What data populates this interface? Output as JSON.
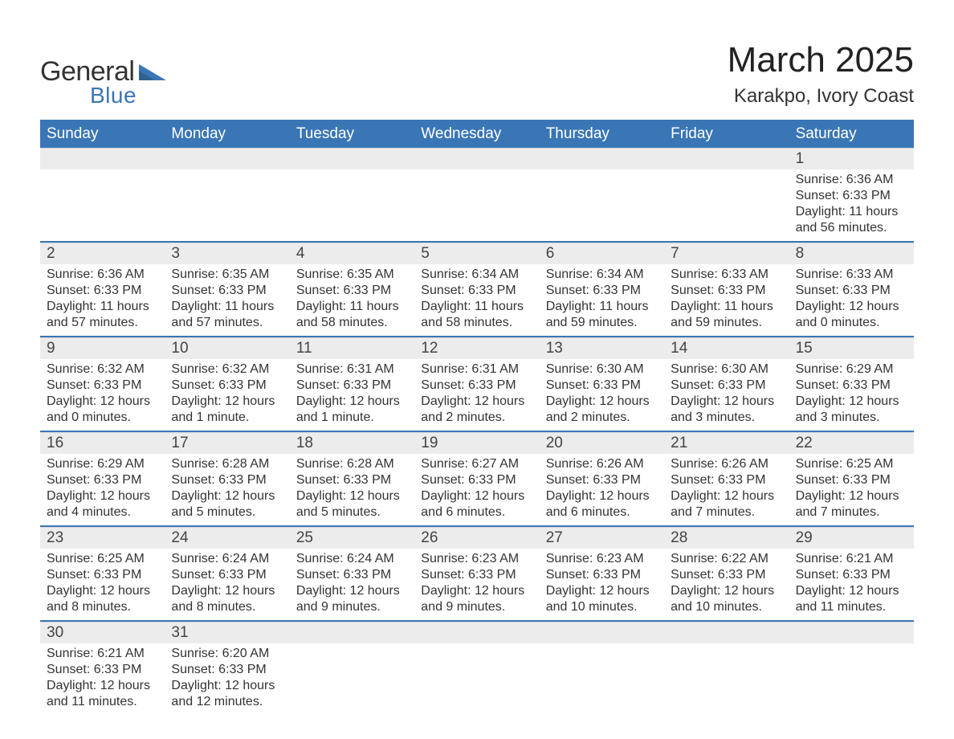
{
  "colors": {
    "header_bg": "#3a76b6",
    "header_text": "#ffffff",
    "band_bg": "#ececec",
    "text": "#333333",
    "page_bg": "#ffffff",
    "logo_blue": "#3a76b6"
  },
  "fonts": {
    "family": "Arial, Helvetica, sans-serif",
    "month_title_size": 44,
    "location_size": 24,
    "day_header_size": 19,
    "daynum_size": 19,
    "content_size": 16
  },
  "logo": {
    "text_general": "General",
    "text_blue": "Blue"
  },
  "title": "March 2025",
  "location": "Karakpo, Ivory Coast",
  "day_headers": [
    "Sunday",
    "Monday",
    "Tuesday",
    "Wednesday",
    "Thursday",
    "Friday",
    "Saturday"
  ],
  "weeks": [
    [
      {
        "n": "",
        "sunrise": "",
        "sunset": "",
        "daylight1": "",
        "daylight2": ""
      },
      {
        "n": "",
        "sunrise": "",
        "sunset": "",
        "daylight1": "",
        "daylight2": ""
      },
      {
        "n": "",
        "sunrise": "",
        "sunset": "",
        "daylight1": "",
        "daylight2": ""
      },
      {
        "n": "",
        "sunrise": "",
        "sunset": "",
        "daylight1": "",
        "daylight2": ""
      },
      {
        "n": "",
        "sunrise": "",
        "sunset": "",
        "daylight1": "",
        "daylight2": ""
      },
      {
        "n": "",
        "sunrise": "",
        "sunset": "",
        "daylight1": "",
        "daylight2": ""
      },
      {
        "n": "1",
        "sunrise": "Sunrise: 6:36 AM",
        "sunset": "Sunset: 6:33 PM",
        "daylight1": "Daylight: 11 hours",
        "daylight2": "and 56 minutes."
      }
    ],
    [
      {
        "n": "2",
        "sunrise": "Sunrise: 6:36 AM",
        "sunset": "Sunset: 6:33 PM",
        "daylight1": "Daylight: 11 hours",
        "daylight2": "and 57 minutes."
      },
      {
        "n": "3",
        "sunrise": "Sunrise: 6:35 AM",
        "sunset": "Sunset: 6:33 PM",
        "daylight1": "Daylight: 11 hours",
        "daylight2": "and 57 minutes."
      },
      {
        "n": "4",
        "sunrise": "Sunrise: 6:35 AM",
        "sunset": "Sunset: 6:33 PM",
        "daylight1": "Daylight: 11 hours",
        "daylight2": "and 58 minutes."
      },
      {
        "n": "5",
        "sunrise": "Sunrise: 6:34 AM",
        "sunset": "Sunset: 6:33 PM",
        "daylight1": "Daylight: 11 hours",
        "daylight2": "and 58 minutes."
      },
      {
        "n": "6",
        "sunrise": "Sunrise: 6:34 AM",
        "sunset": "Sunset: 6:33 PM",
        "daylight1": "Daylight: 11 hours",
        "daylight2": "and 59 minutes."
      },
      {
        "n": "7",
        "sunrise": "Sunrise: 6:33 AM",
        "sunset": "Sunset: 6:33 PM",
        "daylight1": "Daylight: 11 hours",
        "daylight2": "and 59 minutes."
      },
      {
        "n": "8",
        "sunrise": "Sunrise: 6:33 AM",
        "sunset": "Sunset: 6:33 PM",
        "daylight1": "Daylight: 12 hours",
        "daylight2": "and 0 minutes."
      }
    ],
    [
      {
        "n": "9",
        "sunrise": "Sunrise: 6:32 AM",
        "sunset": "Sunset: 6:33 PM",
        "daylight1": "Daylight: 12 hours",
        "daylight2": "and 0 minutes."
      },
      {
        "n": "10",
        "sunrise": "Sunrise: 6:32 AM",
        "sunset": "Sunset: 6:33 PM",
        "daylight1": "Daylight: 12 hours",
        "daylight2": "and 1 minute."
      },
      {
        "n": "11",
        "sunrise": "Sunrise: 6:31 AM",
        "sunset": "Sunset: 6:33 PM",
        "daylight1": "Daylight: 12 hours",
        "daylight2": "and 1 minute."
      },
      {
        "n": "12",
        "sunrise": "Sunrise: 6:31 AM",
        "sunset": "Sunset: 6:33 PM",
        "daylight1": "Daylight: 12 hours",
        "daylight2": "and 2 minutes."
      },
      {
        "n": "13",
        "sunrise": "Sunrise: 6:30 AM",
        "sunset": "Sunset: 6:33 PM",
        "daylight1": "Daylight: 12 hours",
        "daylight2": "and 2 minutes."
      },
      {
        "n": "14",
        "sunrise": "Sunrise: 6:30 AM",
        "sunset": "Sunset: 6:33 PM",
        "daylight1": "Daylight: 12 hours",
        "daylight2": "and 3 minutes."
      },
      {
        "n": "15",
        "sunrise": "Sunrise: 6:29 AM",
        "sunset": "Sunset: 6:33 PM",
        "daylight1": "Daylight: 12 hours",
        "daylight2": "and 3 minutes."
      }
    ],
    [
      {
        "n": "16",
        "sunrise": "Sunrise: 6:29 AM",
        "sunset": "Sunset: 6:33 PM",
        "daylight1": "Daylight: 12 hours",
        "daylight2": "and 4 minutes."
      },
      {
        "n": "17",
        "sunrise": "Sunrise: 6:28 AM",
        "sunset": "Sunset: 6:33 PM",
        "daylight1": "Daylight: 12 hours",
        "daylight2": "and 5 minutes."
      },
      {
        "n": "18",
        "sunrise": "Sunrise: 6:28 AM",
        "sunset": "Sunset: 6:33 PM",
        "daylight1": "Daylight: 12 hours",
        "daylight2": "and 5 minutes."
      },
      {
        "n": "19",
        "sunrise": "Sunrise: 6:27 AM",
        "sunset": "Sunset: 6:33 PM",
        "daylight1": "Daylight: 12 hours",
        "daylight2": "and 6 minutes."
      },
      {
        "n": "20",
        "sunrise": "Sunrise: 6:26 AM",
        "sunset": "Sunset: 6:33 PM",
        "daylight1": "Daylight: 12 hours",
        "daylight2": "and 6 minutes."
      },
      {
        "n": "21",
        "sunrise": "Sunrise: 6:26 AM",
        "sunset": "Sunset: 6:33 PM",
        "daylight1": "Daylight: 12 hours",
        "daylight2": "and 7 minutes."
      },
      {
        "n": "22",
        "sunrise": "Sunrise: 6:25 AM",
        "sunset": "Sunset: 6:33 PM",
        "daylight1": "Daylight: 12 hours",
        "daylight2": "and 7 minutes."
      }
    ],
    [
      {
        "n": "23",
        "sunrise": "Sunrise: 6:25 AM",
        "sunset": "Sunset: 6:33 PM",
        "daylight1": "Daylight: 12 hours",
        "daylight2": "and 8 minutes."
      },
      {
        "n": "24",
        "sunrise": "Sunrise: 6:24 AM",
        "sunset": "Sunset: 6:33 PM",
        "daylight1": "Daylight: 12 hours",
        "daylight2": "and 8 minutes."
      },
      {
        "n": "25",
        "sunrise": "Sunrise: 6:24 AM",
        "sunset": "Sunset: 6:33 PM",
        "daylight1": "Daylight: 12 hours",
        "daylight2": "and 9 minutes."
      },
      {
        "n": "26",
        "sunrise": "Sunrise: 6:23 AM",
        "sunset": "Sunset: 6:33 PM",
        "daylight1": "Daylight: 12 hours",
        "daylight2": "and 9 minutes."
      },
      {
        "n": "27",
        "sunrise": "Sunrise: 6:23 AM",
        "sunset": "Sunset: 6:33 PM",
        "daylight1": "Daylight: 12 hours",
        "daylight2": "and 10 minutes."
      },
      {
        "n": "28",
        "sunrise": "Sunrise: 6:22 AM",
        "sunset": "Sunset: 6:33 PM",
        "daylight1": "Daylight: 12 hours",
        "daylight2": "and 10 minutes."
      },
      {
        "n": "29",
        "sunrise": "Sunrise: 6:21 AM",
        "sunset": "Sunset: 6:33 PM",
        "daylight1": "Daylight: 12 hours",
        "daylight2": "and 11 minutes."
      }
    ],
    [
      {
        "n": "30",
        "sunrise": "Sunrise: 6:21 AM",
        "sunset": "Sunset: 6:33 PM",
        "daylight1": "Daylight: 12 hours",
        "daylight2": "and 11 minutes."
      },
      {
        "n": "31",
        "sunrise": "Sunrise: 6:20 AM",
        "sunset": "Sunset: 6:33 PM",
        "daylight1": "Daylight: 12 hours",
        "daylight2": "and 12 minutes."
      },
      {
        "n": "",
        "sunrise": "",
        "sunset": "",
        "daylight1": "",
        "daylight2": ""
      },
      {
        "n": "",
        "sunrise": "",
        "sunset": "",
        "daylight1": "",
        "daylight2": ""
      },
      {
        "n": "",
        "sunrise": "",
        "sunset": "",
        "daylight1": "",
        "daylight2": ""
      },
      {
        "n": "",
        "sunrise": "",
        "sunset": "",
        "daylight1": "",
        "daylight2": ""
      },
      {
        "n": "",
        "sunrise": "",
        "sunset": "",
        "daylight1": "",
        "daylight2": ""
      }
    ]
  ]
}
